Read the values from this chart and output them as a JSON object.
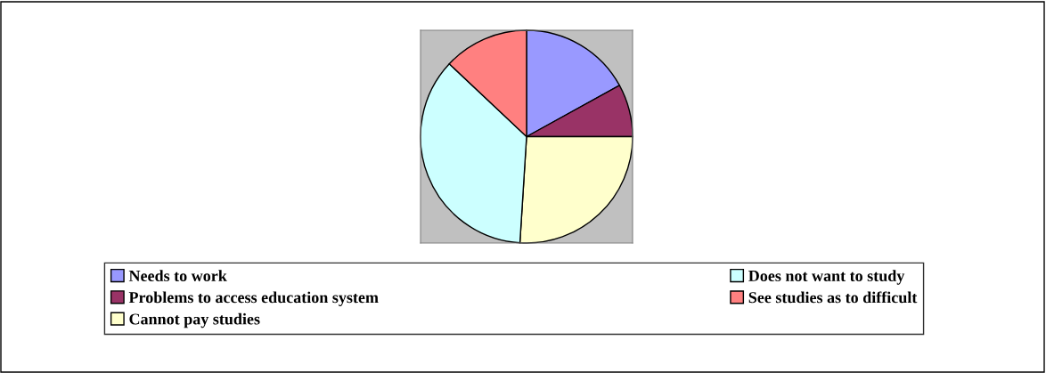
{
  "chart_data": {
    "type": "pie",
    "categories": [
      "Needs to work",
      "Problems to access education system",
      "Cannot pay studies",
      "Does not want to study",
      "See studies as to difficult"
    ],
    "values": [
      17,
      8,
      26,
      36,
      13
    ],
    "colors": [
      "#9999ff",
      "#993366",
      "#ffffcc",
      "#ccffff",
      "#ff8080"
    ],
    "legend": "bottom"
  }
}
